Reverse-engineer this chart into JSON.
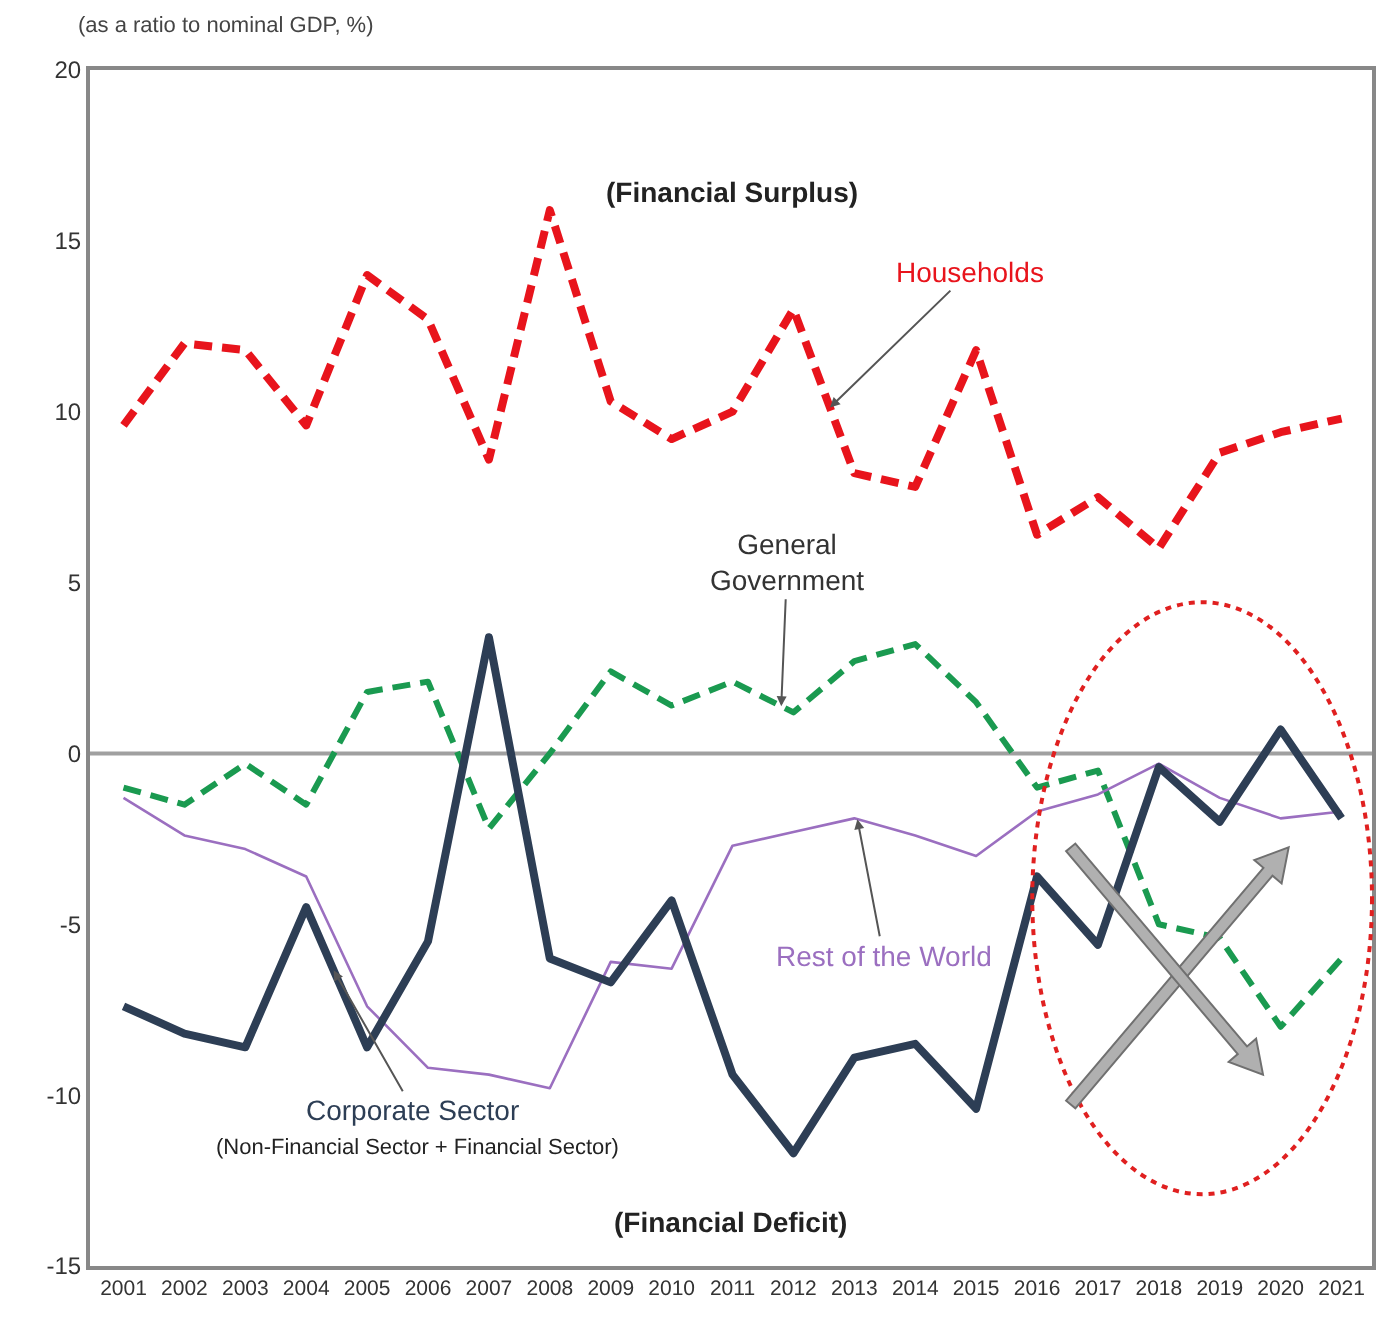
{
  "chart_data": {
    "type": "line",
    "ylabel": "(as a ratio to nominal GDP, %)",
    "x": [
      2001,
      2002,
      2003,
      2004,
      2005,
      2006,
      2007,
      2008,
      2009,
      2010,
      2011,
      2012,
      2013,
      2014,
      2015,
      2016,
      2017,
      2018,
      2019,
      2020,
      2021
    ],
    "xlim": [
      2000.45,
      2021.5
    ],
    "xticks": [
      2001,
      2002,
      2003,
      2004,
      2005,
      2006,
      2007,
      2008,
      2009,
      2010,
      2011,
      2012,
      2013,
      2014,
      2015,
      2016,
      2017,
      2018,
      2019,
      2020,
      2021
    ],
    "ylim": [
      -15,
      20
    ],
    "yticks": [
      -15,
      -10,
      -5,
      0,
      5,
      10,
      15,
      20
    ],
    "grid": false,
    "legend": false,
    "marker": "none",
    "series": [
      {
        "name": "Households",
        "color": "#e8141c",
        "line_style": "dashed",
        "values": [
          9.6,
          12.0,
          11.8,
          9.6,
          14.0,
          12.7,
          8.6,
          15.9,
          10.3,
          9.2,
          10.0,
          13.0,
          8.2,
          7.8,
          11.8,
          6.4,
          7.5,
          6.0,
          8.8,
          9.4,
          9.8
        ]
      },
      {
        "name": "General\nGovernment",
        "color": "#1a9a50",
        "line_style": "dashed",
        "values": [
          -1.0,
          -1.5,
          -0.3,
          -1.5,
          1.8,
          2.1,
          -2.2,
          0.0,
          2.4,
          1.4,
          2.1,
          1.2,
          2.7,
          3.2,
          1.5,
          -1.0,
          -0.5,
          -5.0,
          -5.4,
          -8.0,
          -6.0
        ]
      },
      {
        "name": "Rest of the World",
        "color": "#9b6fc0",
        "line_style": "solid",
        "values": [
          -1.3,
          -2.4,
          -2.8,
          -3.6,
          -7.4,
          -9.2,
          -9.4,
          -9.8,
          -6.1,
          -6.3,
          -2.7,
          -2.3,
          -1.9,
          -2.4,
          -3.0,
          -1.7,
          -1.2,
          -0.3,
          -1.3,
          -1.9,
          -1.7
        ]
      },
      {
        "name": "Corporate Sector",
        "color": "#2d3e55",
        "line_style": "solid",
        "values": [
          -7.4,
          -8.2,
          -8.6,
          -4.5,
          -8.6,
          -5.5,
          3.4,
          -6.0,
          -6.7,
          -4.3,
          -9.4,
          -11.7,
          -8.9,
          -8.5,
          -10.4,
          -3.6,
          -5.6,
          -0.4,
          -2.0,
          0.7,
          -1.9
        ]
      }
    ],
    "ref_lines": [
      {
        "axis": "y",
        "value": 0,
        "color": "#a0a0a0"
      }
    ],
    "annotations": [
      "(Non-Financial Sector + Financial Sector)",
      "(Financial Surplus)",
      "(Financial Deficit)"
    ]
  }
}
